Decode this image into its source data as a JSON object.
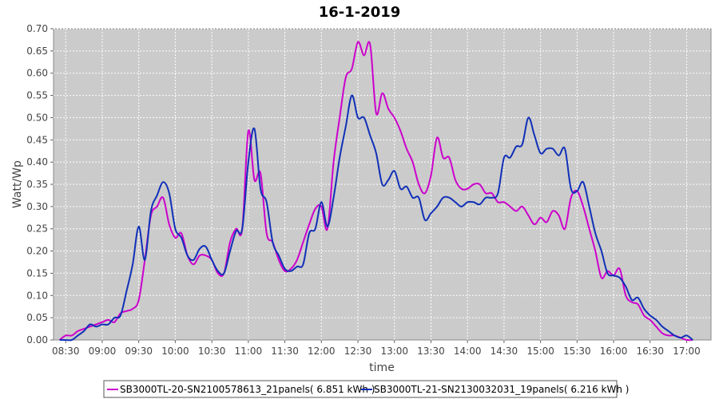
{
  "chart_data": {
    "type": "line",
    "title": "16-1-2019",
    "xlabel": "time",
    "ylabel": "Watt/Wp",
    "xlim": [
      "08:20",
      "17:20"
    ],
    "ylim": [
      0,
      0.7
    ],
    "x_ticks": [
      "08:30",
      "09:00",
      "09:30",
      "10:00",
      "10:30",
      "11:00",
      "11:30",
      "12:00",
      "12:30",
      "13:00",
      "13:30",
      "14:00",
      "14:30",
      "15:00",
      "15:30",
      "16:00",
      "16:30",
      "17:00"
    ],
    "y_ticks": [
      "0.00",
      "0.05",
      "0.10",
      "0.15",
      "0.20",
      "0.25",
      "0.30",
      "0.35",
      "0.40",
      "0.45",
      "0.50",
      "0.55",
      "0.60",
      "0.65",
      "0.70"
    ],
    "grid": true,
    "legend_position": "bottom",
    "x": [
      "08:25",
      "08:30",
      "08:35",
      "08:40",
      "08:45",
      "08:50",
      "08:55",
      "09:00",
      "09:05",
      "09:10",
      "09:15",
      "09:20",
      "09:25",
      "09:30",
      "09:35",
      "09:40",
      "09:45",
      "09:50",
      "09:55",
      "10:00",
      "10:05",
      "10:10",
      "10:15",
      "10:20",
      "10:25",
      "10:30",
      "10:35",
      "10:40",
      "10:45",
      "10:50",
      "10:55",
      "11:00",
      "11:05",
      "11:10",
      "11:15",
      "11:20",
      "11:25",
      "11:30",
      "11:35",
      "11:40",
      "11:45",
      "11:50",
      "11:55",
      "12:00",
      "12:05",
      "12:10",
      "12:15",
      "12:20",
      "12:25",
      "12:30",
      "12:35",
      "12:40",
      "12:45",
      "12:50",
      "12:55",
      "13:00",
      "13:05",
      "13:10",
      "13:15",
      "13:20",
      "13:25",
      "13:30",
      "13:35",
      "13:40",
      "13:45",
      "13:50",
      "13:55",
      "14:00",
      "14:05",
      "14:10",
      "14:15",
      "14:20",
      "14:25",
      "14:30",
      "14:35",
      "14:40",
      "14:45",
      "14:50",
      "14:55",
      "15:00",
      "15:05",
      "15:10",
      "15:15",
      "15:20",
      "15:25",
      "15:30",
      "15:35",
      "15:40",
      "15:45",
      "15:50",
      "15:55",
      "16:00",
      "16:05",
      "16:10",
      "16:15",
      "16:20",
      "16:25",
      "16:30",
      "16:35",
      "16:40",
      "16:45",
      "16:50",
      "16:55",
      "17:00",
      "17:05"
    ],
    "series": [
      {
        "name": "SB3000TL-20-SN2100578613_21panels( 6.851 kWh )",
        "color": "#cc00cc",
        "values": [
          0.0,
          0.01,
          0.01,
          0.02,
          0.025,
          0.03,
          0.035,
          0.04,
          0.045,
          0.04,
          0.06,
          0.065,
          0.07,
          0.09,
          0.18,
          0.28,
          0.3,
          0.32,
          0.26,
          0.23,
          0.24,
          0.19,
          0.17,
          0.19,
          0.19,
          0.18,
          0.15,
          0.15,
          0.22,
          0.25,
          0.25,
          0.47,
          0.36,
          0.375,
          0.24,
          0.22,
          0.18,
          0.155,
          0.16,
          0.18,
          0.22,
          0.26,
          0.295,
          0.3,
          0.25,
          0.4,
          0.5,
          0.59,
          0.61,
          0.67,
          0.64,
          0.665,
          0.51,
          0.555,
          0.52,
          0.5,
          0.47,
          0.43,
          0.4,
          0.35,
          0.33,
          0.37,
          0.455,
          0.41,
          0.41,
          0.36,
          0.34,
          0.34,
          0.35,
          0.35,
          0.33,
          0.33,
          0.31,
          0.31,
          0.3,
          0.29,
          0.3,
          0.28,
          0.26,
          0.275,
          0.265,
          0.29,
          0.28,
          0.25,
          0.32,
          0.335,
          0.3,
          0.25,
          0.2,
          0.14,
          0.155,
          0.145,
          0.16,
          0.1,
          0.085,
          0.08,
          0.055,
          0.045,
          0.03,
          0.015,
          0.01,
          0.01,
          0.005,
          0.0,
          0.0
        ]
      },
      {
        "name": "SB3000TL-21-SN2130032031_19panels( 6.216 kWh )",
        "color": "#1030b8",
        "values": [
          0.0,
          0.0,
          0.0,
          0.01,
          0.02,
          0.035,
          0.03,
          0.035,
          0.035,
          0.05,
          0.055,
          0.11,
          0.17,
          0.255,
          0.18,
          0.29,
          0.325,
          0.355,
          0.33,
          0.25,
          0.23,
          0.19,
          0.18,
          0.205,
          0.21,
          0.18,
          0.155,
          0.15,
          0.2,
          0.245,
          0.25,
          0.4,
          0.475,
          0.34,
          0.31,
          0.22,
          0.19,
          0.16,
          0.155,
          0.165,
          0.17,
          0.24,
          0.25,
          0.31,
          0.255,
          0.32,
          0.41,
          0.48,
          0.55,
          0.5,
          0.5,
          0.46,
          0.42,
          0.35,
          0.36,
          0.38,
          0.34,
          0.345,
          0.32,
          0.32,
          0.27,
          0.285,
          0.3,
          0.32,
          0.32,
          0.31,
          0.3,
          0.31,
          0.31,
          0.305,
          0.32,
          0.32,
          0.33,
          0.41,
          0.41,
          0.435,
          0.44,
          0.5,
          0.46,
          0.42,
          0.43,
          0.43,
          0.415,
          0.43,
          0.34,
          0.335,
          0.355,
          0.3,
          0.24,
          0.2,
          0.15,
          0.145,
          0.14,
          0.12,
          0.09,
          0.095,
          0.07,
          0.055,
          0.045,
          0.03,
          0.02,
          0.01,
          0.005,
          0.01,
          0.0
        ]
      }
    ]
  }
}
